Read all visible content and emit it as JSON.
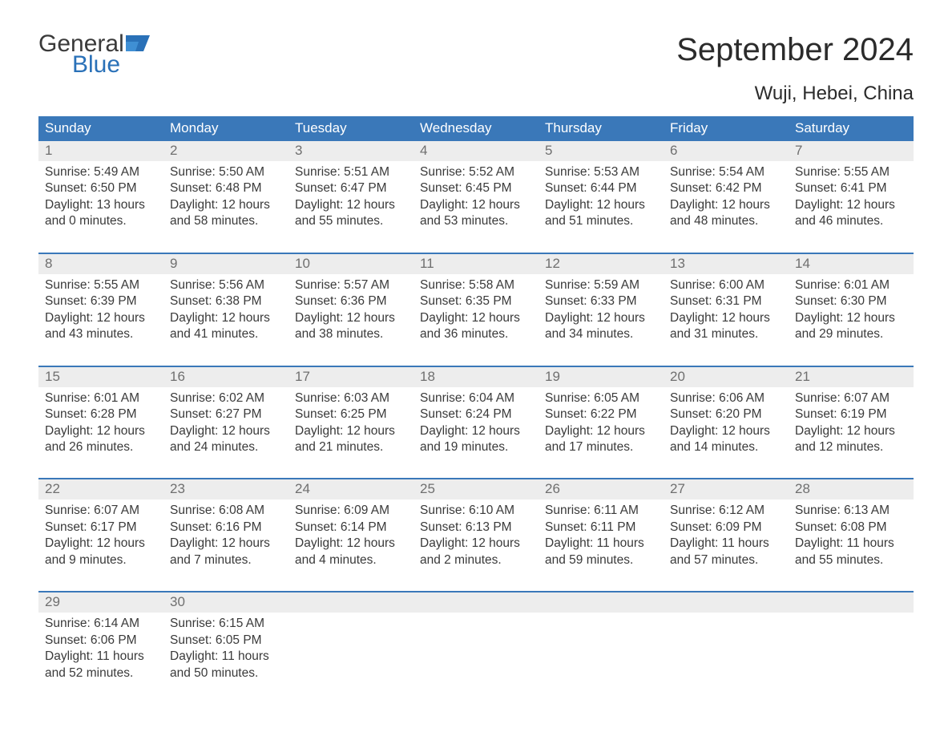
{
  "logo": {
    "line1": "General",
    "line2": "Blue",
    "flag_color": "#2a71b8"
  },
  "title": "September 2024",
  "location": "Wuji, Hebei, China",
  "columns": [
    "Sunday",
    "Monday",
    "Tuesday",
    "Wednesday",
    "Thursday",
    "Friday",
    "Saturday"
  ],
  "header_bg": "#3a78b9",
  "header_text_color": "#ffffff",
  "daynum_bg": "#ededed",
  "daynum_color": "#6f6f6f",
  "detail_color": "#3a3a3a",
  "week_border_color": "#3a78b9",
  "background_color": "#ffffff",
  "font_family": "Arial",
  "title_fontsize": 40,
  "location_fontsize": 24,
  "header_fontsize": 17,
  "daynum_fontsize": 17,
  "detail_fontsize": 15.5,
  "labels": {
    "sunrise": "Sunrise:",
    "sunset": "Sunset:",
    "daylight": "Daylight:"
  },
  "weeks": [
    [
      {
        "n": "1",
        "sunrise": "5:49 AM",
        "sunset": "6:50 PM",
        "dl": "13 hours and 0 minutes."
      },
      {
        "n": "2",
        "sunrise": "5:50 AM",
        "sunset": "6:48 PM",
        "dl": "12 hours and 58 minutes."
      },
      {
        "n": "3",
        "sunrise": "5:51 AM",
        "sunset": "6:47 PM",
        "dl": "12 hours and 55 minutes."
      },
      {
        "n": "4",
        "sunrise": "5:52 AM",
        "sunset": "6:45 PM",
        "dl": "12 hours and 53 minutes."
      },
      {
        "n": "5",
        "sunrise": "5:53 AM",
        "sunset": "6:44 PM",
        "dl": "12 hours and 51 minutes."
      },
      {
        "n": "6",
        "sunrise": "5:54 AM",
        "sunset": "6:42 PM",
        "dl": "12 hours and 48 minutes."
      },
      {
        "n": "7",
        "sunrise": "5:55 AM",
        "sunset": "6:41 PM",
        "dl": "12 hours and 46 minutes."
      }
    ],
    [
      {
        "n": "8",
        "sunrise": "5:55 AM",
        "sunset": "6:39 PM",
        "dl": "12 hours and 43 minutes."
      },
      {
        "n": "9",
        "sunrise": "5:56 AM",
        "sunset": "6:38 PM",
        "dl": "12 hours and 41 minutes."
      },
      {
        "n": "10",
        "sunrise": "5:57 AM",
        "sunset": "6:36 PM",
        "dl": "12 hours and 38 minutes."
      },
      {
        "n": "11",
        "sunrise": "5:58 AM",
        "sunset": "6:35 PM",
        "dl": "12 hours and 36 minutes."
      },
      {
        "n": "12",
        "sunrise": "5:59 AM",
        "sunset": "6:33 PM",
        "dl": "12 hours and 34 minutes."
      },
      {
        "n": "13",
        "sunrise": "6:00 AM",
        "sunset": "6:31 PM",
        "dl": "12 hours and 31 minutes."
      },
      {
        "n": "14",
        "sunrise": "6:01 AM",
        "sunset": "6:30 PM",
        "dl": "12 hours and 29 minutes."
      }
    ],
    [
      {
        "n": "15",
        "sunrise": "6:01 AM",
        "sunset": "6:28 PM",
        "dl": "12 hours and 26 minutes."
      },
      {
        "n": "16",
        "sunrise": "6:02 AM",
        "sunset": "6:27 PM",
        "dl": "12 hours and 24 minutes."
      },
      {
        "n": "17",
        "sunrise": "6:03 AM",
        "sunset": "6:25 PM",
        "dl": "12 hours and 21 minutes."
      },
      {
        "n": "18",
        "sunrise": "6:04 AM",
        "sunset": "6:24 PM",
        "dl": "12 hours and 19 minutes."
      },
      {
        "n": "19",
        "sunrise": "6:05 AM",
        "sunset": "6:22 PM",
        "dl": "12 hours and 17 minutes."
      },
      {
        "n": "20",
        "sunrise": "6:06 AM",
        "sunset": "6:20 PM",
        "dl": "12 hours and 14 minutes."
      },
      {
        "n": "21",
        "sunrise": "6:07 AM",
        "sunset": "6:19 PM",
        "dl": "12 hours and 12 minutes."
      }
    ],
    [
      {
        "n": "22",
        "sunrise": "6:07 AM",
        "sunset": "6:17 PM",
        "dl": "12 hours and 9 minutes."
      },
      {
        "n": "23",
        "sunrise": "6:08 AM",
        "sunset": "6:16 PM",
        "dl": "12 hours and 7 minutes."
      },
      {
        "n": "24",
        "sunrise": "6:09 AM",
        "sunset": "6:14 PM",
        "dl": "12 hours and 4 minutes."
      },
      {
        "n": "25",
        "sunrise": "6:10 AM",
        "sunset": "6:13 PM",
        "dl": "12 hours and 2 minutes."
      },
      {
        "n": "26",
        "sunrise": "6:11 AM",
        "sunset": "6:11 PM",
        "dl": "11 hours and 59 minutes."
      },
      {
        "n": "27",
        "sunrise": "6:12 AM",
        "sunset": "6:09 PM",
        "dl": "11 hours and 57 minutes."
      },
      {
        "n": "28",
        "sunrise": "6:13 AM",
        "sunset": "6:08 PM",
        "dl": "11 hours and 55 minutes."
      }
    ],
    [
      {
        "n": "29",
        "sunrise": "6:14 AM",
        "sunset": "6:06 PM",
        "dl": "11 hours and 52 minutes."
      },
      {
        "n": "30",
        "sunrise": "6:15 AM",
        "sunset": "6:05 PM",
        "dl": "11 hours and 50 minutes."
      },
      null,
      null,
      null,
      null,
      null
    ]
  ]
}
